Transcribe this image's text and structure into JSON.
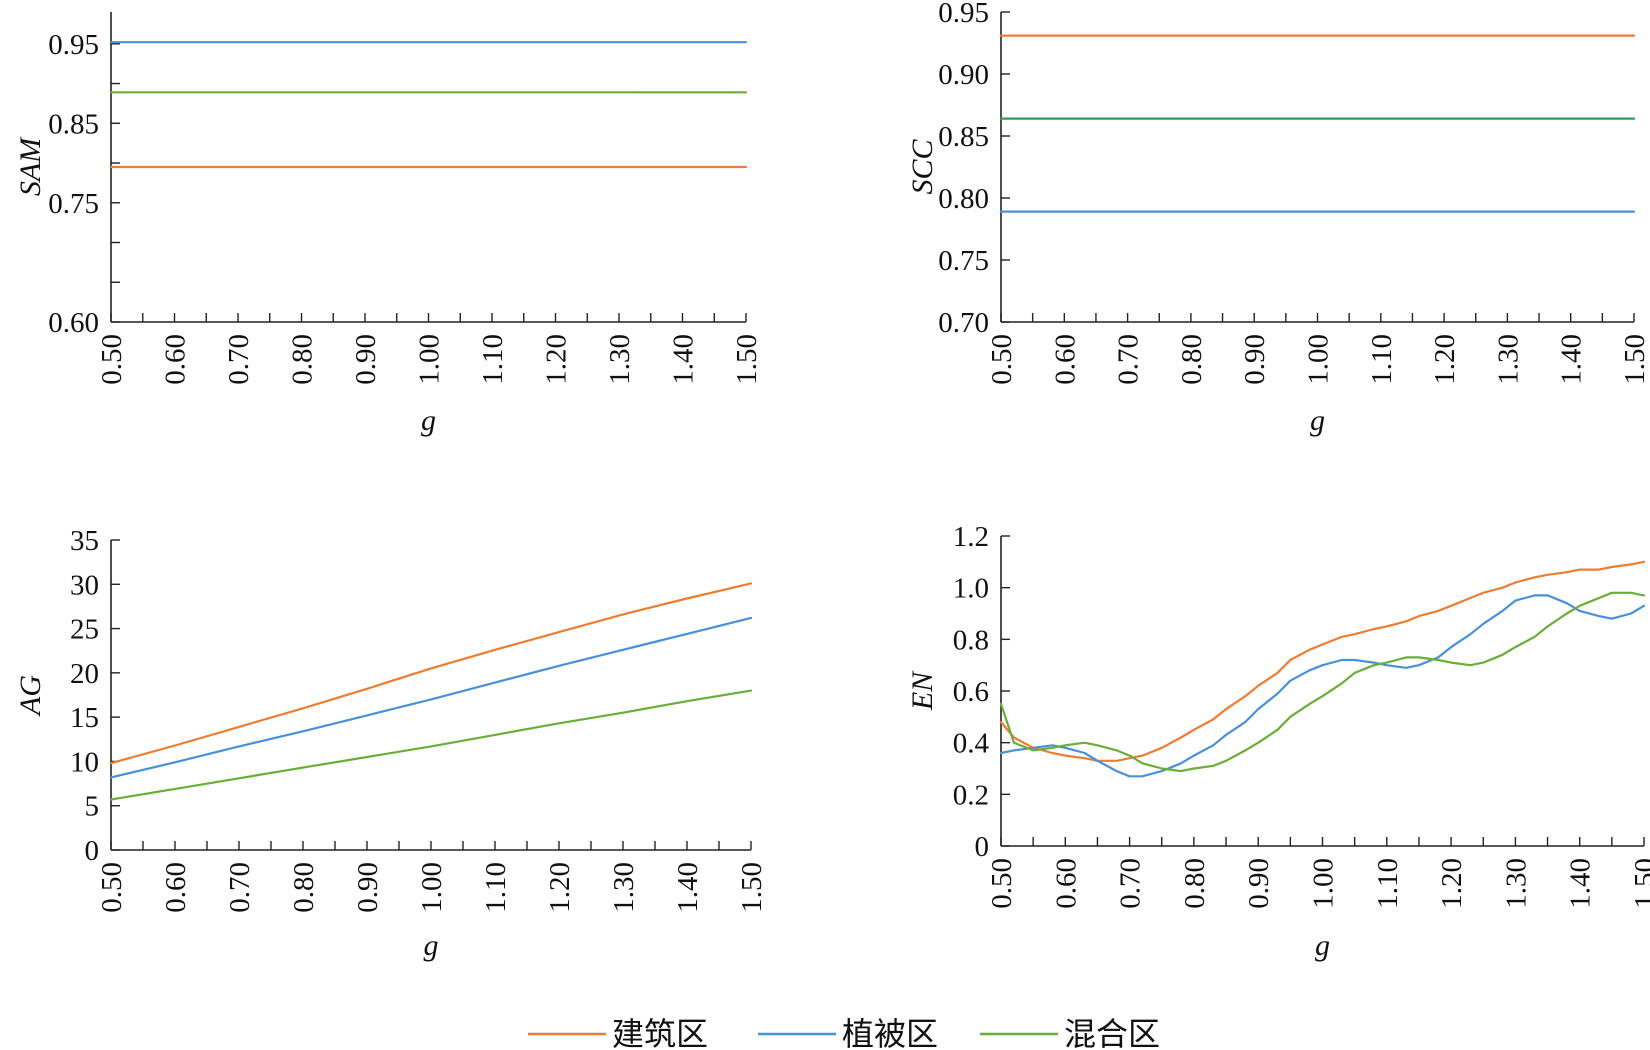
{
  "colors": {
    "建筑区": "#ED7D31",
    "植被区": "#4A90D9",
    "混合区": "#6AAE3A",
    "混合区_scc": "#2E9E4E"
  },
  "legend": [
    "建筑区",
    "植被区",
    "混合区"
  ],
  "chart_data": [
    {
      "type": "line",
      "id": "sam",
      "xlabel": "g",
      "ylabel": "SAM",
      "xlim": [
        0.5,
        1.5
      ],
      "x_ticks": [
        "0.50",
        "0.60",
        "0.70",
        "0.80",
        "0.90",
        "1.00",
        "1.10",
        "1.20",
        "1.30",
        "1.40",
        "1.50"
      ],
      "x_minor_ticks": true,
      "ylim": [
        0.6,
        0.99
      ],
      "y_tick_labels": [
        {
          "value": 0.6,
          "label": "0.60"
        },
        {
          "value": 0.75,
          "label": "0.75"
        },
        {
          "value": 0.85,
          "label": "0.85"
        },
        {
          "value": 0.95,
          "label": "0.95"
        }
      ],
      "y_minor_ticks": [
        0.65,
        0.7,
        0.8,
        0.9
      ],
      "series": [
        {
          "name": "植被区",
          "x": [
            0.5,
            1.5
          ],
          "y": [
            0.952,
            0.952
          ]
        },
        {
          "name": "混合区",
          "x": [
            0.5,
            1.5
          ],
          "y": [
            0.889,
            0.889
          ]
        },
        {
          "name": "建筑区",
          "x": [
            0.5,
            1.5
          ],
          "y": [
            0.795,
            0.795
          ]
        }
      ]
    },
    {
      "type": "line",
      "id": "scc",
      "xlabel": "g",
      "ylabel": "SCC",
      "xlim": [
        0.5,
        1.5
      ],
      "x_ticks": [
        "0.50",
        "0.60",
        "0.70",
        "0.80",
        "0.90",
        "1.00",
        "1.10",
        "1.20",
        "1.30",
        "1.40",
        "1.50"
      ],
      "x_minor_ticks": true,
      "ylim": [
        0.7,
        0.95
      ],
      "y_tick_labels": [
        {
          "value": 0.7,
          "label": "0.70"
        },
        {
          "value": 0.75,
          "label": "0.75"
        },
        {
          "value": 0.8,
          "label": "0.80"
        },
        {
          "value": 0.85,
          "label": "0.85"
        },
        {
          "value": 0.9,
          "label": "0.90"
        },
        {
          "value": 0.95,
          "label": "0.95"
        }
      ],
      "y_minor_ticks": [],
      "series": [
        {
          "name": "建筑区",
          "x": [
            0.5,
            1.5
          ],
          "y": [
            0.931,
            0.931
          ]
        },
        {
          "name": "混合区",
          "x": [
            0.5,
            1.5
          ],
          "y": [
            0.864,
            0.864
          ]
        },
        {
          "name": "植被区",
          "x": [
            0.5,
            1.5
          ],
          "y": [
            0.789,
            0.789
          ]
        }
      ]
    },
    {
      "type": "line",
      "id": "ag",
      "xlabel": "g",
      "ylabel": "AG",
      "xlim": [
        0.5,
        1.5
      ],
      "x_ticks": [
        "0.50",
        "0.60",
        "0.70",
        "0.80",
        "0.90",
        "1.00",
        "1.10",
        "1.20",
        "1.30",
        "1.40",
        "1.50"
      ],
      "x_minor_ticks": true,
      "ylim": [
        0,
        35
      ],
      "y_tick_labels": [
        {
          "value": 0,
          "label": "0"
        },
        {
          "value": 5,
          "label": "5"
        },
        {
          "value": 10,
          "label": "10"
        },
        {
          "value": 15,
          "label": "15"
        },
        {
          "value": 20,
          "label": "20"
        },
        {
          "value": 25,
          "label": "25"
        },
        {
          "value": 30,
          "label": "30"
        },
        {
          "value": 35,
          "label": "35"
        }
      ],
      "y_minor_ticks": [],
      "series": [
        {
          "name": "建筑区",
          "x": [
            0.5,
            0.6,
            0.7,
            0.8,
            0.9,
            1.0,
            1.1,
            1.2,
            1.3,
            1.4,
            1.5
          ],
          "y": [
            9.8,
            11.8,
            13.9,
            16.0,
            18.2,
            20.5,
            22.6,
            24.6,
            26.6,
            28.4,
            30.1
          ]
        },
        {
          "name": "植被区",
          "x": [
            0.5,
            0.6,
            0.7,
            0.8,
            0.9,
            1.0,
            1.1,
            1.2,
            1.3,
            1.4,
            1.5
          ],
          "y": [
            8.2,
            9.9,
            11.7,
            13.4,
            15.2,
            17.0,
            18.9,
            20.8,
            22.6,
            24.4,
            26.2
          ]
        },
        {
          "name": "混合区",
          "x": [
            0.5,
            0.6,
            0.7,
            0.8,
            0.9,
            1.0,
            1.1,
            1.2,
            1.3,
            1.4,
            1.5
          ],
          "y": [
            5.7,
            6.9,
            8.1,
            9.3,
            10.5,
            11.7,
            13.0,
            14.3,
            15.5,
            16.8,
            18.0
          ]
        }
      ]
    },
    {
      "type": "line",
      "id": "en",
      "xlabel": "g",
      "ylabel": "EN",
      "xlim": [
        0.5,
        1.5
      ],
      "x_ticks": [
        "0.50",
        "0.60",
        "0.70",
        "0.80",
        "0.90",
        "1.00",
        "1.10",
        "1.20",
        "1.30",
        "1.40",
        "1.50"
      ],
      "x_minor_ticks": true,
      "ylim": [
        0,
        1.2
      ],
      "y_tick_labels": [
        {
          "value": 0,
          "label": "0"
        },
        {
          "value": 0.2,
          "label": "0.2"
        },
        {
          "value": 0.4,
          "label": "0.4"
        },
        {
          "value": 0.6,
          "label": "0.6"
        },
        {
          "value": 0.8,
          "label": "0.8"
        },
        {
          "value": 1.0,
          "label": "1.0"
        },
        {
          "value": 1.2,
          "label": "1.2"
        }
      ],
      "y_minor_ticks": [],
      "series": [
        {
          "name": "建筑区",
          "x": [
            0.5,
            0.52,
            0.55,
            0.58,
            0.6,
            0.63,
            0.65,
            0.68,
            0.7,
            0.72,
            0.75,
            0.78,
            0.8,
            0.83,
            0.85,
            0.88,
            0.9,
            0.93,
            0.95,
            0.98,
            1.0,
            1.03,
            1.05,
            1.08,
            1.1,
            1.13,
            1.15,
            1.18,
            1.2,
            1.23,
            1.25,
            1.28,
            1.3,
            1.33,
            1.35,
            1.38,
            1.4,
            1.43,
            1.45,
            1.48,
            1.5
          ],
          "y": [
            0.48,
            0.42,
            0.38,
            0.36,
            0.35,
            0.34,
            0.33,
            0.33,
            0.34,
            0.35,
            0.38,
            0.42,
            0.45,
            0.49,
            0.53,
            0.58,
            0.62,
            0.67,
            0.72,
            0.76,
            0.78,
            0.81,
            0.82,
            0.84,
            0.85,
            0.87,
            0.89,
            0.91,
            0.93,
            0.96,
            0.98,
            1.0,
            1.02,
            1.04,
            1.05,
            1.06,
            1.07,
            1.07,
            1.08,
            1.09,
            1.1
          ]
        },
        {
          "name": "植被区",
          "x": [
            0.5,
            0.52,
            0.55,
            0.58,
            0.6,
            0.63,
            0.65,
            0.68,
            0.7,
            0.72,
            0.75,
            0.78,
            0.8,
            0.83,
            0.85,
            0.88,
            0.9,
            0.93,
            0.95,
            0.98,
            1.0,
            1.03,
            1.05,
            1.08,
            1.1,
            1.13,
            1.15,
            1.18,
            1.2,
            1.23,
            1.25,
            1.28,
            1.3,
            1.33,
            1.35,
            1.38,
            1.4,
            1.43,
            1.45,
            1.48,
            1.5
          ],
          "y": [
            0.36,
            0.37,
            0.38,
            0.39,
            0.38,
            0.36,
            0.33,
            0.29,
            0.27,
            0.27,
            0.29,
            0.32,
            0.35,
            0.39,
            0.43,
            0.48,
            0.53,
            0.59,
            0.64,
            0.68,
            0.7,
            0.72,
            0.72,
            0.71,
            0.7,
            0.69,
            0.7,
            0.73,
            0.77,
            0.82,
            0.86,
            0.91,
            0.95,
            0.97,
            0.97,
            0.94,
            0.91,
            0.89,
            0.88,
            0.9,
            0.93
          ]
        },
        {
          "name": "混合区",
          "x": [
            0.5,
            0.52,
            0.55,
            0.58,
            0.6,
            0.63,
            0.65,
            0.68,
            0.7,
            0.72,
            0.75,
            0.78,
            0.8,
            0.83,
            0.85,
            0.88,
            0.9,
            0.93,
            0.95,
            0.98,
            1.0,
            1.03,
            1.05,
            1.08,
            1.1,
            1.13,
            1.15,
            1.18,
            1.2,
            1.23,
            1.25,
            1.28,
            1.3,
            1.33,
            1.35,
            1.38,
            1.4,
            1.43,
            1.45,
            1.48,
            1.5
          ],
          "y": [
            0.55,
            0.4,
            0.37,
            0.38,
            0.39,
            0.4,
            0.39,
            0.37,
            0.35,
            0.32,
            0.3,
            0.29,
            0.3,
            0.31,
            0.33,
            0.37,
            0.4,
            0.45,
            0.5,
            0.55,
            0.58,
            0.63,
            0.67,
            0.7,
            0.71,
            0.73,
            0.73,
            0.72,
            0.71,
            0.7,
            0.71,
            0.74,
            0.77,
            0.81,
            0.85,
            0.9,
            0.93,
            0.96,
            0.98,
            0.98,
            0.97
          ]
        }
      ]
    }
  ]
}
